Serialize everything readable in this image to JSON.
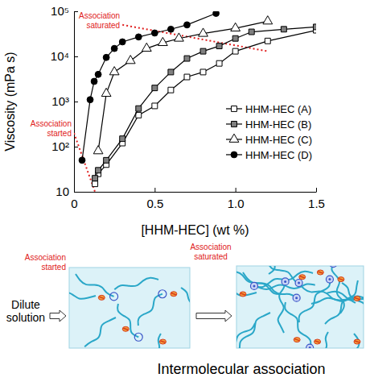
{
  "chart_data": {
    "type": "line",
    "xlabel": "[HHM-HEC] (wt %)",
    "ylabel": "Viscosity (mPa s)",
    "log": "y",
    "xlim": [
      0,
      1.5
    ],
    "ylim": [
      10,
      100000
    ],
    "xticks": [
      0,
      0.5,
      {
        "value": 1,
        "label": "1.0"
      },
      1.5
    ],
    "yticks": [
      10,
      {
        "value": 100,
        "label": "10²"
      },
      {
        "value": 1000,
        "label": "10³"
      },
      {
        "value": 10000,
        "label": "10⁴"
      },
      {
        "value": 100000,
        "label": "10⁵"
      }
    ],
    "legend": "right",
    "series": [
      {
        "name": "HHM-HEC (A)",
        "color": "#000000",
        "marker": "open-square",
        "x": [
          0.13,
          0.15,
          0.2,
          0.3,
          0.4,
          0.5,
          0.6,
          0.7,
          0.8,
          0.9,
          1.0,
          1.2,
          1.5
        ],
        "values": [
          15,
          25,
          40,
          120,
          500,
          800,
          1800,
          3500,
          4500,
          7000,
          13000,
          22000,
          38000
        ]
      },
      {
        "name": "HHM-HEC (B)",
        "color": "#000000",
        "marker": "gray-square",
        "x": [
          0.13,
          0.15,
          0.2,
          0.3,
          0.4,
          0.5,
          0.6,
          0.7,
          0.8,
          0.9,
          1.0,
          1.1,
          1.3,
          1.5
        ],
        "values": [
          20,
          30,
          50,
          150,
          700,
          2000,
          4500,
          9000,
          13000,
          17000,
          25000,
          35000,
          40000,
          45000
        ]
      },
      {
        "name": "HHM-HEC (C)",
        "color": "#000000",
        "marker": "open-triangle",
        "x": [
          0.15,
          0.2,
          0.25,
          0.35,
          0.45,
          0.55,
          0.65,
          0.8,
          1.0,
          1.2
        ],
        "values": [
          80,
          1500,
          4500,
          8000,
          15000,
          20000,
          25000,
          32000,
          42000,
          60000
        ]
      },
      {
        "name": "HHM-HEC (D)",
        "color": "#000000",
        "marker": "filled-circle",
        "x": [
          0.05,
          0.1,
          0.125,
          0.15,
          0.2,
          0.25,
          0.3,
          0.4,
          0.5,
          0.6,
          0.7,
          0.88
        ],
        "values": [
          50,
          1100,
          2800,
          4000,
          9500,
          15000,
          21000,
          27000,
          33000,
          40000,
          50000,
          90000
        ]
      }
    ],
    "annotations": [
      {
        "text": "Association saturated",
        "x": [
          0.3,
          1.2
        ],
        "y": [
          50000,
          13000
        ],
        "color": "#e02020",
        "line_style": "dotted"
      },
      {
        "text": "Association started",
        "x": [
          0,
          0.13
        ],
        "y": [
          200,
          10
        ],
        "color": "#e02020",
        "line_style": "dotted"
      }
    ]
  },
  "diagram": {
    "start_label": "Dilute solution",
    "steps": [
      "Association started",
      "Association saturated"
    ],
    "step_color": "#e02020",
    "caption": "Intermolecular association"
  }
}
